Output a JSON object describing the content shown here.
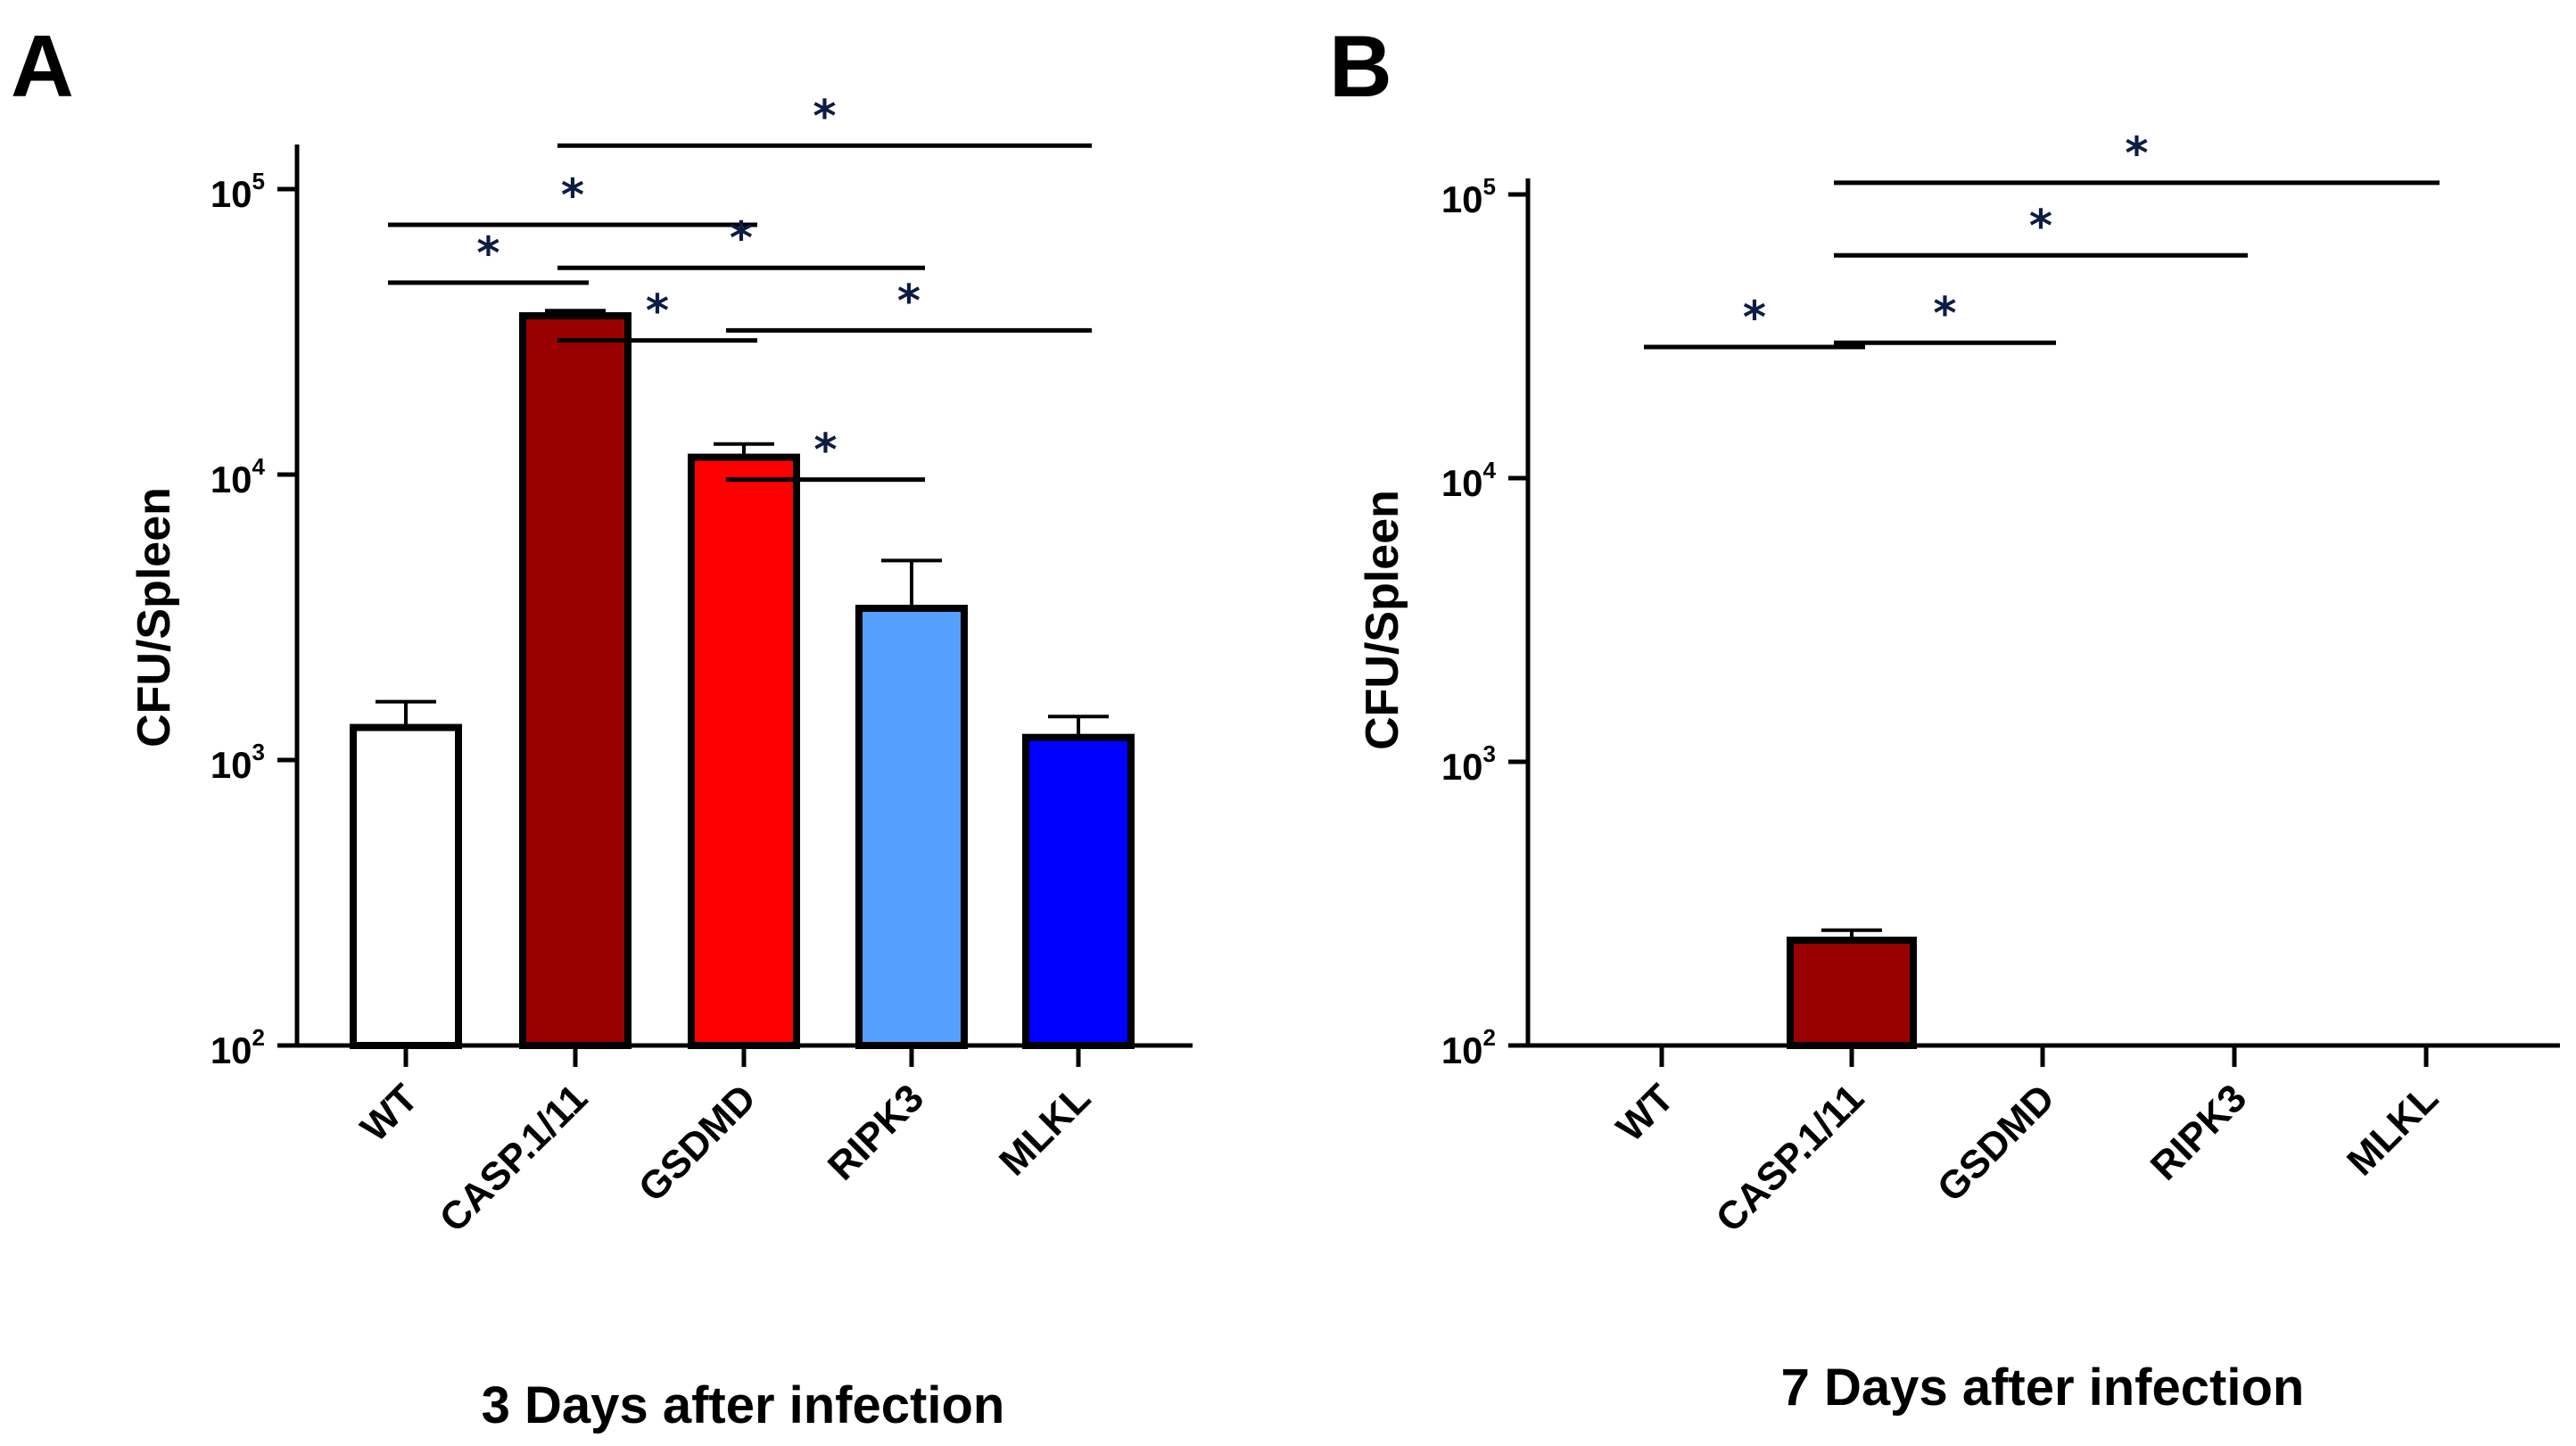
{
  "chart_data": [
    {
      "panel": "A",
      "type": "bar",
      "yscale": "log",
      "ylabel": "CFU/Spleen",
      "xlabel": "3 Days after infection",
      "ylim": [
        100,
        100000
      ],
      "yticks": [
        {
          "base": "10",
          "exp": "2",
          "value": 100
        },
        {
          "base": "10",
          "exp": "3",
          "value": 1000
        },
        {
          "base": "10",
          "exp": "4",
          "value": 10000
        },
        {
          "base": "10",
          "exp": "5",
          "value": 100000
        }
      ],
      "categories": [
        "WT",
        "CASP.1/11",
        "GSDMD",
        "RIPK3",
        "MLKL"
      ],
      "values": [
        1300,
        36000,
        11500,
        3400,
        1200
      ],
      "errors": [
        1600,
        37500,
        12800,
        5000,
        1420
      ],
      "colors": [
        "#ffffff",
        "#990000",
        "#ff0000",
        "#55a0ff",
        "#0000ff"
      ],
      "significance": [
        {
          "label": "*",
          "from": "WT",
          "to": "CASP.1/11",
          "level": 47000
        },
        {
          "label": "*",
          "from": "CASP.1/11",
          "to": "GSDMD",
          "level": 29500
        },
        {
          "label": "*",
          "from": "WT",
          "to": "GSDMD",
          "level": 75000
        },
        {
          "label": "*",
          "from": "CASP.1/11",
          "to": "RIPK3",
          "level": 53000
        },
        {
          "label": "*",
          "from": "CASP.1/11",
          "to": "MLKL",
          "level": 142000
        },
        {
          "label": "*",
          "from": "GSDMD",
          "to": "MLKL",
          "level": 32000
        },
        {
          "label": "*",
          "from": "GSDMD",
          "to": "RIPK3",
          "level": 9600
        }
      ]
    },
    {
      "panel": "B",
      "type": "bar",
      "yscale": "log",
      "ylabel": "CFU/Spleen",
      "xlabel": "7 Days after infection",
      "ylim": [
        100,
        100000
      ],
      "yticks": [
        {
          "base": "10",
          "exp": "2",
          "value": 100
        },
        {
          "base": "10",
          "exp": "3",
          "value": 1000
        },
        {
          "base": "10",
          "exp": "4",
          "value": 10000
        },
        {
          "base": "10",
          "exp": "5",
          "value": 100000
        }
      ],
      "categories": [
        "WT",
        "CASP.1/11",
        "GSDMD",
        "RIPK3",
        "MLKL"
      ],
      "values": [
        0,
        235,
        0,
        0,
        0
      ],
      "errors": [
        0,
        255,
        0,
        0,
        0
      ],
      "colors": [
        "#ffffff",
        "#990000",
        "#ff0000",
        "#55a0ff",
        "#0000ff"
      ],
      "significance": [
        {
          "label": "*",
          "from": "WT",
          "to": "CASP.1/11",
          "level": 29000
        },
        {
          "label": "*",
          "from": "CASP.1/11",
          "to": "GSDMD",
          "level": 30000
        },
        {
          "label": "*",
          "from": "CASP.1/11",
          "to": "RIPK3",
          "level": 61000
        },
        {
          "label": "*",
          "from": "CASP.1/11",
          "to": "MLKL",
          "level": 110000
        }
      ]
    }
  ]
}
